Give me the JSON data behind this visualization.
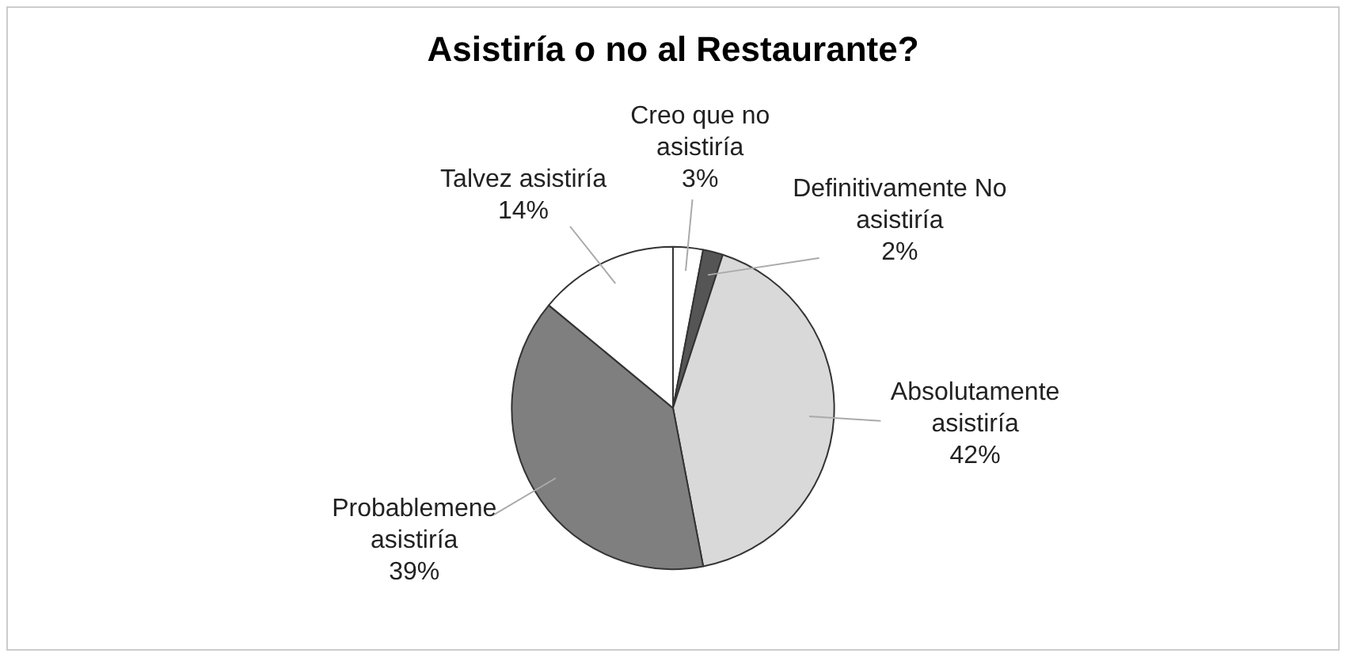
{
  "chart_data": {
    "type": "pie",
    "title": "Asistiría o no al Restaurante?",
    "categories": [
      "Creo que no asistiría",
      "Definitivamente No asistiría",
      "Absolutamente asistiría",
      "Probablemene asistiría",
      "Talvez asistiría"
    ],
    "values": [
      3,
      2,
      42,
      39,
      14
    ],
    "value_labels": [
      "3%",
      "2%",
      "42%",
      "39%",
      "14%"
    ],
    "colors": [
      "#ffffff",
      "#555555",
      "#d9d9d9",
      "#7f7f7f",
      "#ffffff"
    ],
    "legend": false
  }
}
